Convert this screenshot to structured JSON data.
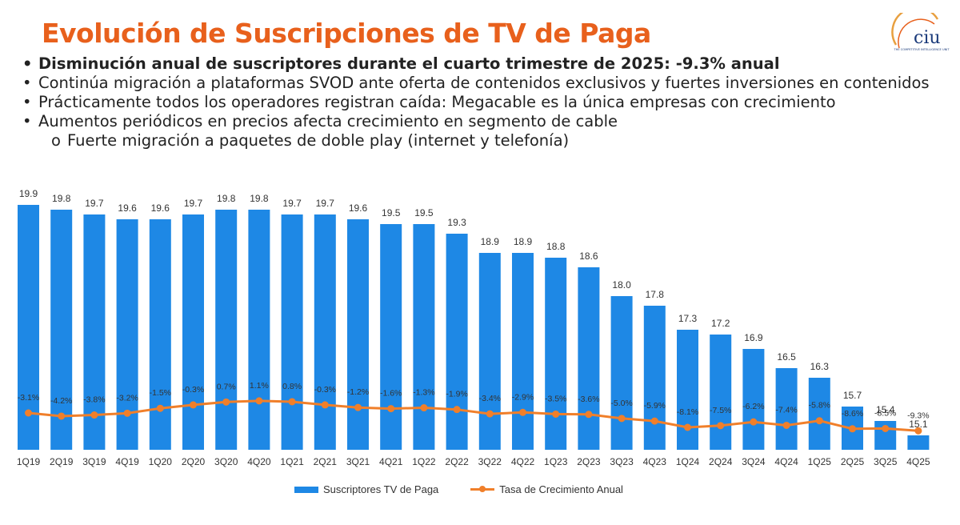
{
  "header": {
    "title": "Evolución de Suscripciones de TV de Paga",
    "logo_text": "ciu",
    "logo_subtext": "THE COMPETITIVE INTELLIGENCE UNIT"
  },
  "bullets": [
    {
      "text": "Disminución anual de suscriptores durante el cuarto trimestre de 2025: -9.3% anual",
      "bold": true,
      "marker": "•"
    },
    {
      "text": "Continúa migración a plataformas SVOD ante oferta de contenidos exclusivos y fuertes inversiones en contenidos",
      "bold": false,
      "marker": "•"
    },
    {
      "text": "Prácticamente todos los operadores registran caída: Megacable es la única empresas con crecimiento",
      "bold": false,
      "marker": "•"
    },
    {
      "text": "Aumentos periódicos en precios afecta crecimiento en segmento de cable",
      "bold": false,
      "marker": "•"
    },
    {
      "text": "Fuerte migración a paquetes de doble play (internet y telefonía)",
      "bold": false,
      "marker": "o",
      "sub": true
    }
  ],
  "chart_data": {
    "type": "bar",
    "categories": [
      "1Q19",
      "2Q19",
      "3Q19",
      "4Q19",
      "1Q20",
      "2Q20",
      "3Q20",
      "4Q20",
      "1Q21",
      "2Q21",
      "3Q21",
      "4Q21",
      "1Q22",
      "2Q22",
      "3Q22",
      "4Q22",
      "1Q23",
      "2Q23",
      "3Q23",
      "4Q23",
      "1Q24",
      "2Q24",
      "3Q24",
      "4Q24",
      "1Q25",
      "2Q25",
      "3Q25",
      "4Q25"
    ],
    "series": [
      {
        "name": "Suscriptores TV de Paga",
        "type": "bar",
        "color": "#1e88e5",
        "values": [
          19.9,
          19.8,
          19.7,
          19.6,
          19.6,
          19.7,
          19.8,
          19.8,
          19.7,
          19.7,
          19.6,
          19.5,
          19.5,
          19.3,
          18.9,
          18.9,
          18.8,
          18.6,
          18.0,
          17.8,
          17.3,
          17.2,
          16.9,
          16.5,
          16.3,
          15.7,
          15.4,
          15.1
        ],
        "labels": [
          "19.9",
          "19.8",
          "19.7",
          "19.6",
          "19.6",
          "19.7",
          "19.8",
          "19.8",
          "19.7",
          "19.7",
          "19.6",
          "19.5",
          "19.5",
          "19.3",
          "18.9",
          "18.9",
          "18.8",
          "18.6",
          "18.0",
          "17.8",
          "17.3",
          "17.2",
          "16.9",
          "16.5",
          "16.3",
          "15.7",
          "15.4",
          "15.1"
        ]
      },
      {
        "name": "Tasa de Crecimiento Anual",
        "type": "line",
        "color": "#f07f2a",
        "values": [
          -3.1,
          -4.2,
          -3.8,
          -3.2,
          -1.5,
          -0.3,
          0.7,
          1.1,
          0.8,
          -0.3,
          -1.2,
          -1.6,
          -1.3,
          -1.9,
          -3.4,
          -2.9,
          -3.5,
          -3.6,
          -5.0,
          -5.9,
          -8.1,
          -7.5,
          -6.2,
          -7.4,
          -5.8,
          -8.6,
          -8.5,
          -9.3
        ],
        "labels": [
          "-3.1%",
          "-4.2%",
          "-3.8%",
          "-3.2%",
          "-1.5%",
          "-0.3%",
          "0.7%",
          "1.1%",
          "0.8%",
          "-0.3%",
          "-1.2%",
          "-1.6%",
          "-1.3%",
          "-1.9%",
          "-3.4%",
          "-2.9%",
          "-3.5%",
          "-3.6%",
          "-5.0%",
          "-5.9%",
          "-8.1%",
          "-7.5%",
          "-6.2%",
          "-7.4%",
          "-5.8%",
          "-8.6%",
          "-8.5%",
          "-9.3%"
        ]
      }
    ],
    "title": "",
    "xlabel": "",
    "ylabel": "",
    "bar_axis_range": [
      14.8,
      20.0
    ],
    "line_axis_range": [
      -20,
      10
    ],
    "grid": false,
    "legend_position": "bottom"
  }
}
